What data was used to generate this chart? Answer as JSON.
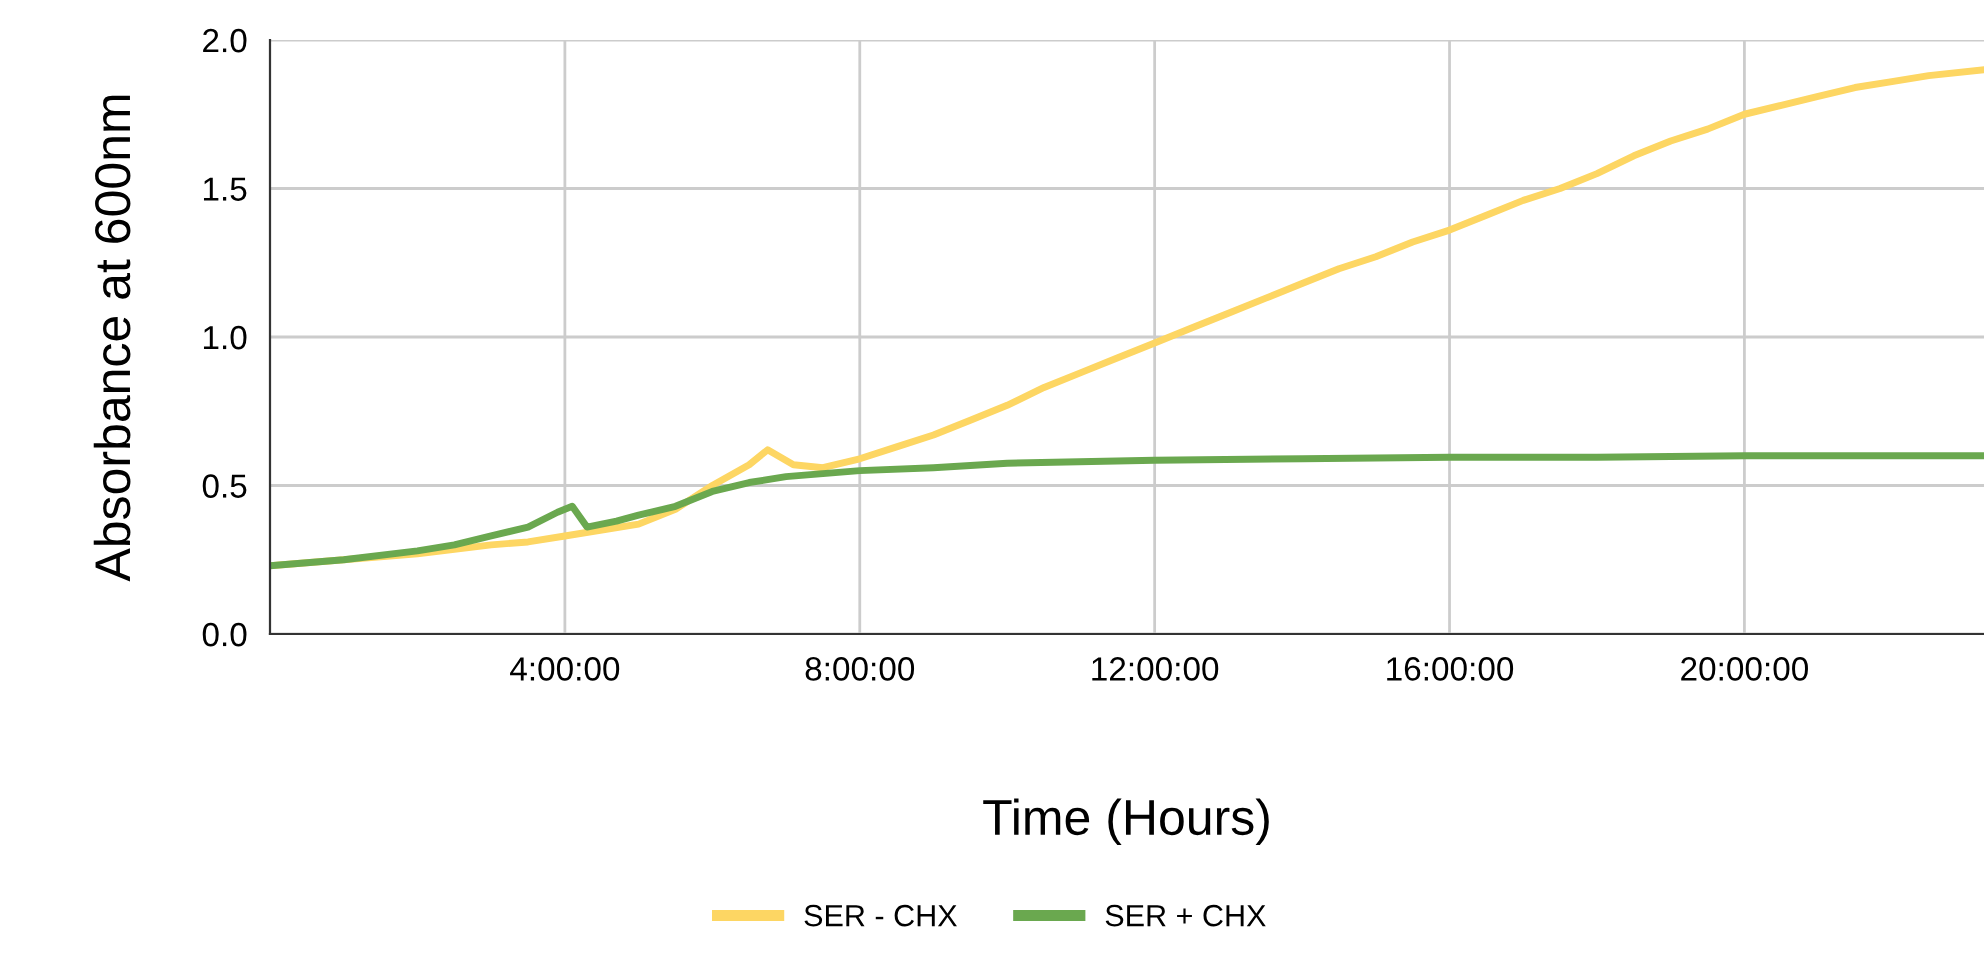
{
  "chart_data": {
    "type": "line",
    "xlabel": "Time (Hours)",
    "ylabel": "Absorbance at 600nm",
    "xlim": [
      0,
      23.25
    ],
    "ylim": [
      0,
      2.0
    ],
    "xticks": [
      {
        "value": 4,
        "label": "4:00:00"
      },
      {
        "value": 8,
        "label": "8:00:00"
      },
      {
        "value": 12,
        "label": "12:00:00"
      },
      {
        "value": 16,
        "label": "16:00:00"
      },
      {
        "value": 20,
        "label": "20:00:00"
      }
    ],
    "yticks": [
      {
        "value": 0,
        "label": "0.0"
      },
      {
        "value": 0.5,
        "label": "0.5"
      },
      {
        "value": 1.0,
        "label": "1.0"
      },
      {
        "value": 1.5,
        "label": "1.5"
      },
      {
        "value": 2.0,
        "label": "2.0"
      }
    ],
    "grid": true,
    "legend": "bottom",
    "marker": "none",
    "line_style": "solid",
    "series": [
      {
        "name": "SER - CHX",
        "color": "#fdd663",
        "x": [
          0,
          1,
          2,
          3,
          3.5,
          4,
          4.5,
          5,
          5.5,
          6,
          6.5,
          6.75,
          7.1,
          7.5,
          8,
          8.5,
          9,
          9.5,
          10,
          10.5,
          11,
          11.5,
          12,
          12.5,
          13,
          13.5,
          14,
          14.5,
          15,
          15.5,
          16,
          16.5,
          17,
          17.5,
          18,
          18.5,
          19,
          19.5,
          20,
          20.5,
          21,
          21.5,
          22,
          22.5,
          23.25
        ],
        "values": [
          0.23,
          0.25,
          0.27,
          0.3,
          0.31,
          0.33,
          0.35,
          0.37,
          0.42,
          0.5,
          0.57,
          0.62,
          0.57,
          0.56,
          0.59,
          0.63,
          0.67,
          0.72,
          0.77,
          0.83,
          0.88,
          0.93,
          0.98,
          1.03,
          1.08,
          1.13,
          1.18,
          1.23,
          1.27,
          1.32,
          1.36,
          1.41,
          1.46,
          1.5,
          1.55,
          1.61,
          1.66,
          1.7,
          1.75,
          1.78,
          1.81,
          1.84,
          1.86,
          1.88,
          1.9
        ]
      },
      {
        "name": "SER + CHX",
        "color": "#6aa84f",
        "x": [
          0,
          1,
          2,
          2.5,
          3,
          3.5,
          3.9,
          4.1,
          4.3,
          4.7,
          5,
          5.5,
          6,
          6.5,
          7,
          8,
          9,
          10,
          12,
          14,
          16,
          18,
          20,
          23.25
        ],
        "values": [
          0.23,
          0.25,
          0.28,
          0.3,
          0.33,
          0.36,
          0.41,
          0.43,
          0.36,
          0.38,
          0.4,
          0.43,
          0.48,
          0.51,
          0.53,
          0.55,
          0.56,
          0.575,
          0.585,
          0.59,
          0.595,
          0.595,
          0.6,
          0.6
        ]
      }
    ]
  }
}
